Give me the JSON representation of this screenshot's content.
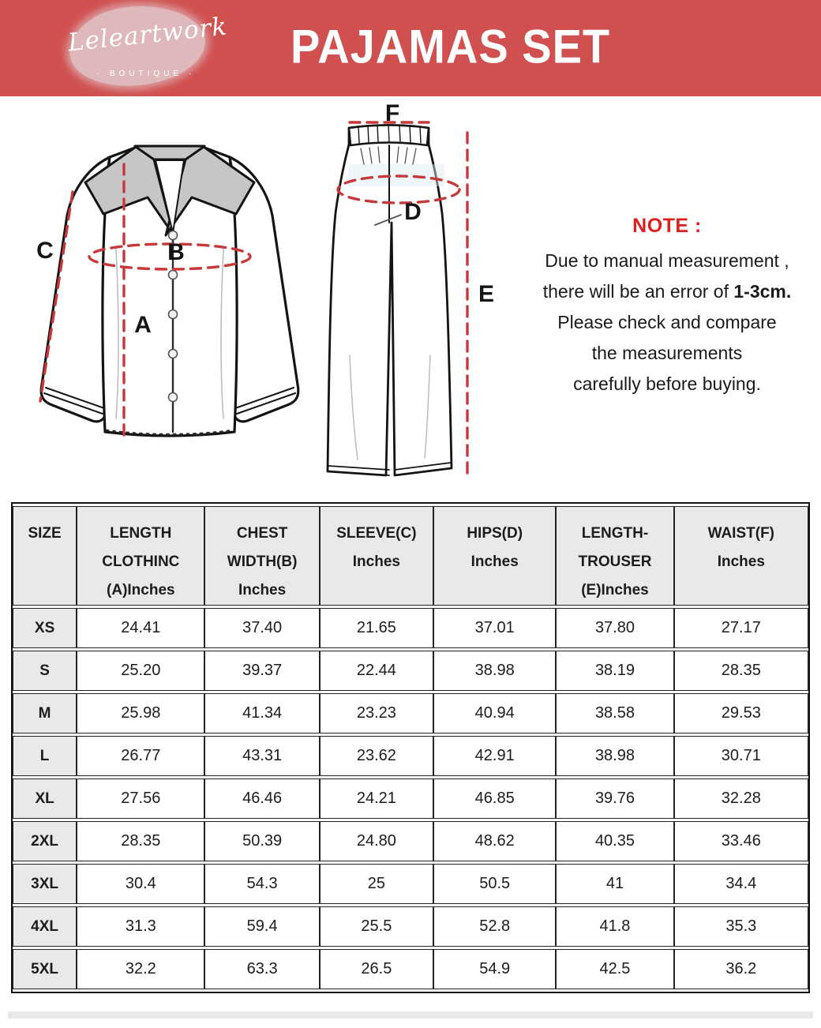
{
  "colors": {
    "banner_red": "#d0504f",
    "note_red": "#dd1f1f",
    "dash_red": "#c5393b"
  },
  "header": {
    "logo_text": "Leleartwork",
    "logo_subtext": "· BOUTIQUE ·",
    "title": "PAJAMAS SET"
  },
  "diagram": {
    "labels": {
      "a": "A",
      "b": "B",
      "c": "C",
      "d": "D",
      "e": "E",
      "f": "F"
    }
  },
  "note": {
    "heading": "NOTE :",
    "line1": "Due to manual measurement ,",
    "line2a": "there will be an error of ",
    "line2b": "1-3cm.",
    "line3": "Please check and compare",
    "line4": "the measurements",
    "line5": "carefully before buying."
  },
  "size_table": {
    "columns": [
      "SIZE",
      "LENGTH\nCLOTHINC\n(A)Inches",
      "CHEST\nWIDTH(B)\nInches",
      "SLEEVE(C)\nInches",
      "HIPS(D)\nInches",
      "LENGTH-\nTROUSER\n(E)Inches",
      "WAIST(F)\nInches"
    ],
    "rows": [
      {
        "size": "XS",
        "values": [
          "24.41",
          "37.40",
          "21.65",
          "37.01",
          "37.80",
          "27.17"
        ]
      },
      {
        "size": "S",
        "values": [
          "25.20",
          "39.37",
          "22.44",
          "38.98",
          "38.19",
          "28.35"
        ]
      },
      {
        "size": "M",
        "values": [
          "25.98",
          "41.34",
          "23.23",
          "40.94",
          "38.58",
          "29.53"
        ]
      },
      {
        "size": "L",
        "values": [
          "26.77",
          "43.31",
          "23.62",
          "42.91",
          "38.98",
          "30.71"
        ]
      },
      {
        "size": "XL",
        "values": [
          "27.56",
          "46.46",
          "24.21",
          "46.85",
          "39.76",
          "32.28"
        ]
      },
      {
        "size": "2XL",
        "values": [
          "28.35",
          "50.39",
          "24.80",
          "48.62",
          "40.35",
          "33.46"
        ]
      },
      {
        "size": "3XL",
        "values": [
          "30.4",
          "54.3",
          "25",
          "50.5",
          "41",
          "34.4"
        ]
      },
      {
        "size": "4XL",
        "values": [
          "31.3",
          "59.4",
          "25.5",
          "52.8",
          "41.8",
          "35.3"
        ]
      },
      {
        "size": "5XL",
        "values": [
          "32.2",
          "63.3",
          "26.5",
          "54.9",
          "42.5",
          "36.2"
        ]
      }
    ]
  }
}
